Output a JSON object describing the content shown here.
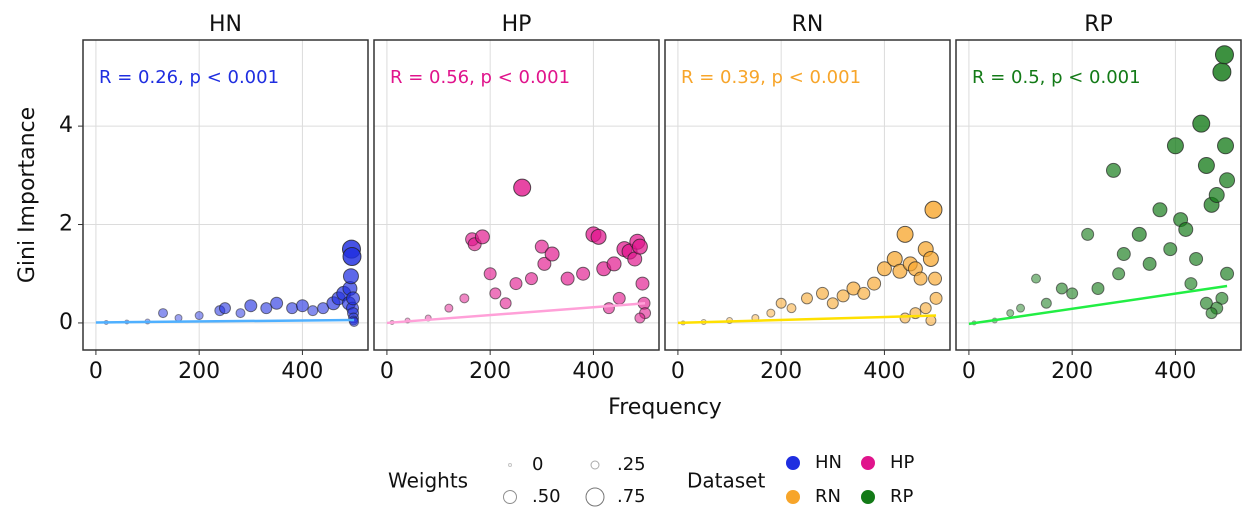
{
  "chart_data": {
    "type": "scatter",
    "xlabel": "Frequency",
    "ylabel": "Gini Importance",
    "xlim": [
      -25,
      527
    ],
    "ylim": [
      -0.55,
      5.75
    ],
    "xticks": [
      0,
      200,
      400
    ],
    "yticks": [
      0,
      2,
      4
    ],
    "grid": true,
    "size_legend": {
      "title": "Weights",
      "values": [
        0,
        {
          "value": 0.25,
          "label": ".25"
        },
        {
          "value": 0.5,
          "label": ".50"
        },
        {
          "value": 0.75,
          "label": ".75"
        }
      ]
    },
    "color_legend_title": "Dataset",
    "panels": [
      {
        "title": "HN",
        "color": "#1f2ee0",
        "fit_color": "#4fb0ff",
        "annotation": "R = 0.26, p < 0.001",
        "x": [
          20,
          60,
          100,
          130,
          160,
          200,
          240,
          250,
          280,
          300,
          330,
          350,
          380,
          400,
          420,
          440,
          460,
          470,
          480,
          490,
          492,
          494,
          495,
          496,
          497,
          498,
          498,
          499,
          499,
          500
        ],
        "y": [
          0.01,
          0.02,
          0.03,
          0.2,
          0.1,
          0.15,
          0.25,
          0.3,
          0.2,
          0.35,
          0.3,
          0.4,
          0.3,
          0.35,
          0.25,
          0.3,
          0.4,
          0.5,
          0.6,
          0.4,
          0.7,
          0.95,
          1.5,
          1.35,
          0.3,
          0.5,
          0.2,
          0.1,
          0.05,
          0.02
        ],
        "size": [
          0.05,
          0.05,
          0.1,
          0.3,
          0.2,
          0.25,
          0.35,
          0.4,
          0.3,
          0.45,
          0.4,
          0.45,
          0.4,
          0.45,
          0.35,
          0.4,
          0.5,
          0.5,
          0.55,
          0.5,
          0.55,
          0.6,
          0.75,
          0.75,
          0.45,
          0.5,
          0.4,
          0.35,
          0.3,
          0.3
        ],
        "fit": {
          "x": [
            0,
            500
          ],
          "y": [
            0.01,
            0.06
          ]
        }
      },
      {
        "title": "HP",
        "color": "#e0148c",
        "fit_color": "#ffa0d8",
        "annotation": "R = 0.56, p < 0.001",
        "x": [
          10,
          40,
          80,
          120,
          150,
          165,
          170,
          185,
          200,
          210,
          230,
          250,
          262,
          280,
          300,
          305,
          320,
          350,
          380,
          400,
          410,
          420,
          440,
          460,
          470,
          480,
          485,
          490,
          495,
          498,
          500,
          450,
          430,
          490
        ],
        "y": [
          0.01,
          0.05,
          0.1,
          0.3,
          0.5,
          1.7,
          1.6,
          1.75,
          1.0,
          0.6,
          0.4,
          0.8,
          2.75,
          0.9,
          1.55,
          1.2,
          1.4,
          0.9,
          1.0,
          1.8,
          1.75,
          1.1,
          1.2,
          1.5,
          1.45,
          1.3,
          1.65,
          1.55,
          0.8,
          0.4,
          0.2,
          0.5,
          0.3,
          0.1
        ],
        "size": [
          0.05,
          0.1,
          0.15,
          0.25,
          0.3,
          0.5,
          0.5,
          0.55,
          0.45,
          0.4,
          0.4,
          0.45,
          0.7,
          0.45,
          0.5,
          0.5,
          0.55,
          0.5,
          0.5,
          0.6,
          0.6,
          0.55,
          0.55,
          0.6,
          0.6,
          0.55,
          0.6,
          0.6,
          0.5,
          0.45,
          0.4,
          0.45,
          0.4,
          0.35
        ],
        "fit": {
          "x": [
            0,
            500
          ],
          "y": [
            0.0,
            0.4
          ]
        }
      },
      {
        "title": "RN",
        "color": "#f7a52a",
        "fit_color": "#ffe000",
        "annotation": "R = 0.39, p < 0.001",
        "x": [
          10,
          50,
          100,
          150,
          180,
          200,
          220,
          250,
          280,
          300,
          320,
          340,
          360,
          380,
          400,
          420,
          430,
          440,
          450,
          460,
          470,
          480,
          490,
          495,
          498,
          500,
          480,
          460,
          440,
          490
        ],
        "y": [
          0.0,
          0.02,
          0.05,
          0.1,
          0.2,
          0.4,
          0.3,
          0.5,
          0.6,
          0.4,
          0.55,
          0.7,
          0.6,
          0.8,
          1.1,
          1.3,
          1.05,
          1.8,
          1.2,
          1.1,
          0.9,
          1.5,
          1.3,
          2.3,
          0.9,
          0.5,
          0.3,
          0.2,
          0.1,
          0.05
        ],
        "size": [
          0.05,
          0.1,
          0.15,
          0.2,
          0.25,
          0.35,
          0.3,
          0.4,
          0.45,
          0.4,
          0.45,
          0.5,
          0.45,
          0.5,
          0.55,
          0.6,
          0.55,
          0.65,
          0.55,
          0.55,
          0.5,
          0.6,
          0.6,
          0.7,
          0.5,
          0.45,
          0.4,
          0.4,
          0.35,
          0.35
        ],
        "fit": {
          "x": [
            0,
            500
          ],
          "y": [
            0.0,
            0.15
          ]
        }
      },
      {
        "title": "RP",
        "color": "#137a17",
        "fit_color": "#22ee44",
        "annotation": "R = 0.5, p < 0.001",
        "x": [
          10,
          50,
          80,
          100,
          130,
          150,
          180,
          200,
          230,
          250,
          280,
          290,
          300,
          330,
          350,
          370,
          390,
          400,
          410,
          420,
          440,
          450,
          460,
          470,
          480,
          490,
          495,
          497,
          500,
          500,
          490,
          480,
          460,
          430,
          470
        ],
        "y": [
          0.0,
          0.05,
          0.2,
          0.3,
          0.9,
          0.4,
          0.7,
          0.6,
          1.8,
          0.7,
          3.1,
          1.0,
          1.4,
          1.8,
          1.2,
          2.3,
          1.5,
          3.6,
          2.1,
          1.9,
          1.3,
          4.05,
          3.2,
          2.4,
          2.6,
          5.1,
          5.45,
          3.6,
          2.9,
          1.0,
          0.5,
          0.3,
          0.4,
          0.8,
          0.2
        ],
        "size": [
          0.05,
          0.1,
          0.2,
          0.25,
          0.3,
          0.35,
          0.4,
          0.4,
          0.45,
          0.45,
          0.55,
          0.45,
          0.5,
          0.55,
          0.5,
          0.55,
          0.5,
          0.65,
          0.55,
          0.55,
          0.5,
          0.7,
          0.65,
          0.6,
          0.6,
          0.75,
          0.75,
          0.65,
          0.6,
          0.5,
          0.45,
          0.45,
          0.45,
          0.45,
          0.4
        ],
        "fit": {
          "x": [
            0,
            500
          ],
          "y": [
            -0.02,
            0.75
          ]
        }
      }
    ]
  }
}
